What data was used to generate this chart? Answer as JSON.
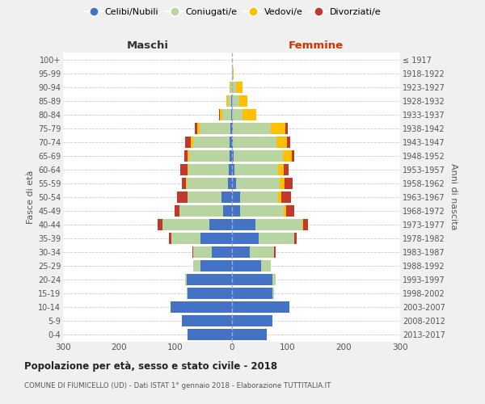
{
  "age_groups": [
    "0-4",
    "5-9",
    "10-14",
    "15-19",
    "20-24",
    "25-29",
    "30-34",
    "35-39",
    "40-44",
    "45-49",
    "50-54",
    "55-59",
    "60-64",
    "65-69",
    "70-74",
    "75-79",
    "80-84",
    "85-89",
    "90-94",
    "95-99",
    "100+"
  ],
  "birth_years": [
    "2013-2017",
    "2008-2012",
    "2003-2007",
    "1998-2002",
    "1993-1997",
    "1988-1992",
    "1983-1987",
    "1978-1982",
    "1973-1977",
    "1968-1972",
    "1963-1967",
    "1958-1962",
    "1953-1957",
    "1948-1952",
    "1943-1947",
    "1938-1942",
    "1933-1937",
    "1928-1932",
    "1923-1927",
    "1918-1922",
    "≤ 1917"
  ],
  "males_celibi": [
    78,
    88,
    108,
    78,
    80,
    55,
    35,
    55,
    40,
    15,
    18,
    7,
    5,
    4,
    3,
    2,
    1,
    1,
    0,
    0,
    0
  ],
  "males_coniugati": [
    0,
    0,
    0,
    2,
    3,
    13,
    33,
    52,
    83,
    78,
    60,
    73,
    72,
    72,
    65,
    55,
    15,
    5,
    2,
    0,
    0
  ],
  "males_vedovi": [
    0,
    0,
    0,
    0,
    0,
    0,
    0,
    0,
    0,
    0,
    1,
    1,
    2,
    3,
    5,
    4,
    5,
    3,
    1,
    0,
    0
  ],
  "males_divorziati": [
    0,
    0,
    0,
    0,
    0,
    1,
    2,
    5,
    8,
    8,
    18,
    8,
    12,
    5,
    10,
    5,
    1,
    0,
    0,
    0,
    0
  ],
  "females_nubili": [
    63,
    73,
    103,
    73,
    73,
    52,
    33,
    48,
    43,
    15,
    15,
    8,
    5,
    4,
    2,
    2,
    1,
    1,
    0,
    0,
    0
  ],
  "females_coniugate": [
    0,
    0,
    0,
    2,
    5,
    18,
    43,
    63,
    83,
    78,
    68,
    78,
    78,
    88,
    78,
    68,
    18,
    12,
    8,
    2,
    0
  ],
  "females_vedove": [
    0,
    0,
    0,
    0,
    0,
    0,
    0,
    0,
    2,
    4,
    5,
    8,
    10,
    15,
    18,
    25,
    25,
    15,
    12,
    2,
    0
  ],
  "females_divorziate": [
    0,
    0,
    0,
    0,
    0,
    0,
    2,
    5,
    8,
    15,
    18,
    15,
    8,
    5,
    7,
    5,
    0,
    0,
    0,
    0,
    0
  ],
  "color_celibi": "#4472c4",
  "color_coniugati": "#b8d4a0",
  "color_vedovi": "#ffc000",
  "color_divorziati": "#c0392b",
  "xlim": 300,
  "bg_color": "#f0f0f0",
  "plot_bg": "#ffffff",
  "title": "Popolazione per età, sesso e stato civile - 2018",
  "subtitle": "COMUNE DI FIUMICELLO (UD) - Dati ISTAT 1° gennaio 2018 - Elaborazione TUTTITALIA.IT",
  "legend_labels": [
    "Celibi/Nubili",
    "Coniugati/e",
    "Vedovi/e",
    "Divorziati/e"
  ],
  "label_maschi": "Maschi",
  "label_femmine": "Femmine",
  "ylabel_left": "Fasce di età",
  "ylabel_right": "Anni di nascita"
}
